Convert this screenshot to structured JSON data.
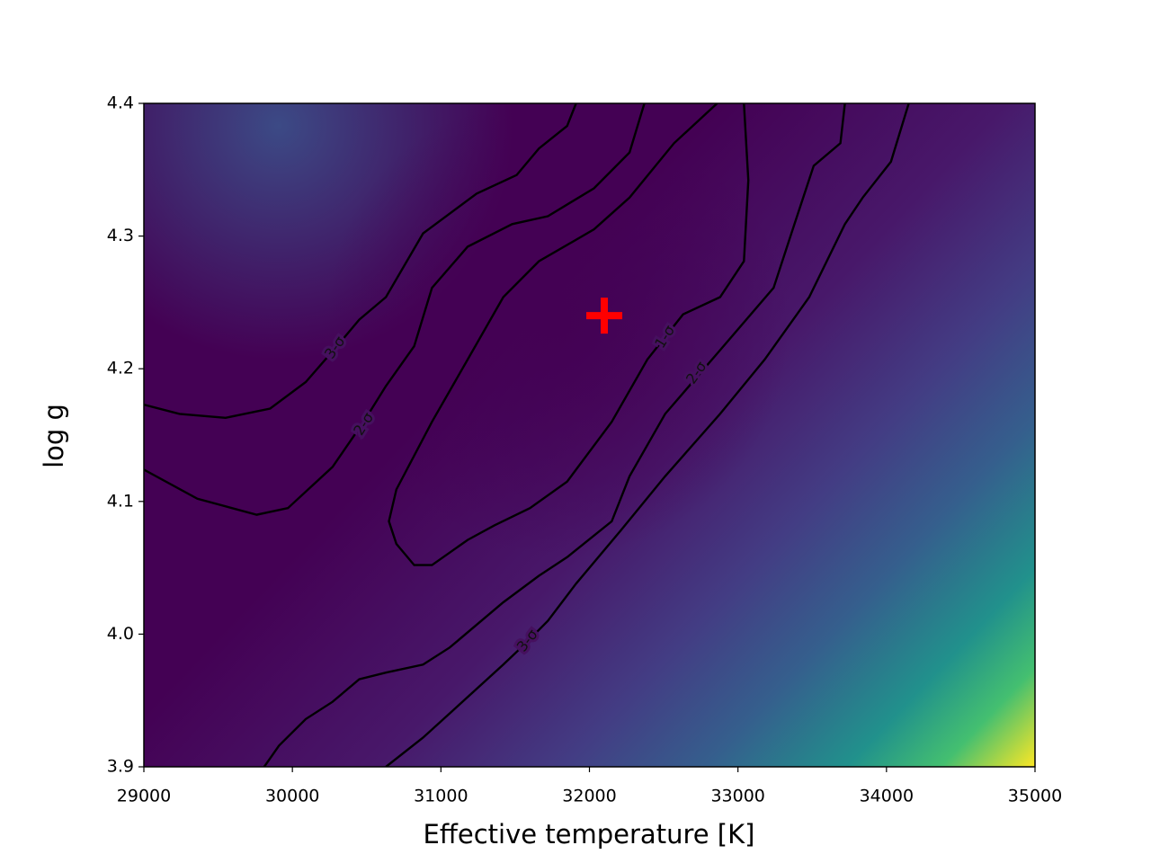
{
  "chart_data": {
    "type": "contour",
    "xlabel": "Effective temperature [K]",
    "ylabel": "log g",
    "xlim": [
      29000,
      35000
    ],
    "xticks": [
      29000,
      30000,
      31000,
      32000,
      33000,
      34000,
      35000
    ],
    "ylim": [
      3.9,
      4.4
    ],
    "yticks": [
      3.9,
      {
        "value": 4,
        "label": "4.0"
      },
      4.1,
      4.2,
      4.3,
      4.4
    ],
    "line_color": "#000000",
    "contours": [
      {
        "name": "1-σ",
        "x": [
          32860,
          32570,
          32270,
          32030,
          31660,
          31420,
          31180,
          30940,
          30700,
          30650,
          30700,
          30820,
          30940,
          31180,
          31360,
          31600,
          31850,
          32150,
          32390,
          32630,
          32880,
          33040,
          33070,
          33040
        ],
        "y": [
          4.4,
          4.37,
          4.329,
          4.305,
          4.281,
          4.254,
          4.207,
          4.16,
          4.109,
          4.085,
          4.068,
          4.052,
          4.052,
          4.071,
          4.082,
          4.095,
          4.115,
          4.16,
          4.207,
          4.241,
          4.254,
          4.281,
          4.342,
          4.4
        ]
      },
      {
        "name": "2-σ",
        "x": [
          32370,
          32270,
          32030,
          31720,
          31480,
          31180,
          30940,
          30820,
          30630,
          30480,
          30270,
          29970,
          29760,
          29360,
          29000,
          null,
          33720,
          33690,
          33510,
          33360,
          33240,
          32880,
          32510,
          32270,
          32150,
          31850,
          31660,
          31420,
          31060,
          30880,
          30630,
          30450,
          30270,
          30090,
          29910,
          29810
        ],
        "y": [
          4.4,
          4.363,
          4.336,
          4.315,
          4.309,
          4.292,
          4.261,
          4.217,
          4.187,
          4.16,
          4.126,
          4.095,
          4.09,
          4.102,
          4.124,
          null,
          4.4,
          4.37,
          4.353,
          4.302,
          4.261,
          4.214,
          4.166,
          4.119,
          4.085,
          4.058,
          4.044,
          4.024,
          3.99,
          3.977,
          3.971,
          3.966,
          3.949,
          3.936,
          3.916,
          3.9
        ]
      },
      {
        "name": "3-σ",
        "x": [
          31910,
          31850,
          31660,
          31510,
          31240,
          30880,
          30630,
          30450,
          30300,
          30090,
          29850,
          29550,
          29240,
          29000,
          null,
          34150,
          34030,
          33840,
          33720,
          33480,
          33180,
          32880,
          32510,
          32210,
          31910,
          31720,
          31570,
          31420,
          30880,
          30630
        ],
        "y": [
          4.4,
          4.383,
          4.366,
          4.346,
          4.332,
          4.302,
          4.254,
          4.237,
          4.217,
          4.19,
          4.17,
          4.163,
          4.166,
          4.173,
          null,
          4.4,
          4.356,
          4.329,
          4.309,
          4.254,
          4.207,
          4.166,
          4.119,
          4.078,
          4.038,
          4.01,
          3.993,
          3.977,
          3.922,
          3.9
        ]
      }
    ],
    "marker": {
      "x": 32100,
      "y": 4.24,
      "color": "#ff0000"
    }
  }
}
